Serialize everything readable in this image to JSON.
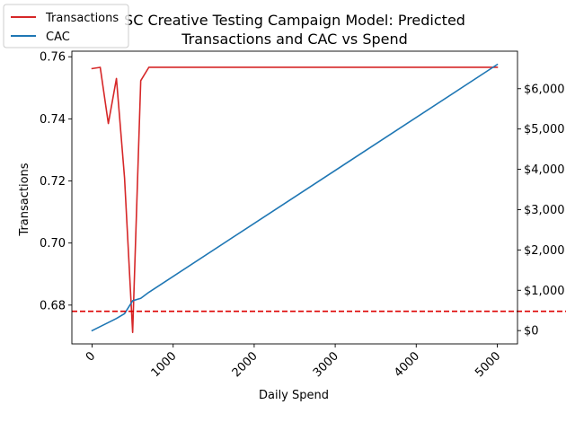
{
  "chart_data": {
    "type": "line",
    "title_line1": "SC Creative Testing Campaign Model: Predicted",
    "title_line2": "Transactions and CAC vs Spend",
    "xlabel": "Daily Spend",
    "ylabel_left": "Transactions",
    "xlim": [
      -250,
      5250
    ],
    "xticks": [
      0,
      1000,
      2000,
      3000,
      4000,
      5000
    ],
    "ylim_left": [
      0.6675,
      0.7618
    ],
    "yticks_left": [
      0.68,
      0.7,
      0.72,
      0.74,
      0.76
    ],
    "ytick_left_labels": [
      "0.68",
      "0.70",
      "0.72",
      "0.74",
      "0.76"
    ],
    "ylim_right": [
      -330,
      6930
    ],
    "yticks_right": [
      0,
      1000,
      2000,
      3000,
      4000,
      5000,
      6000
    ],
    "ytick_right_labels": [
      "$0",
      "$1,000",
      "$2,000",
      "$3,000",
      "$4,000",
      "$5,000",
      "$6,000"
    ],
    "reference_line": {
      "axis": "left",
      "y": 0.678,
      "color": "#dd0000",
      "style": "dashed"
    },
    "legend_position": "top-left",
    "series": [
      {
        "name": "Transactions",
        "axis": "left",
        "color": "#d62728",
        "x": [
          0,
          100,
          200,
          300,
          400,
          500,
          600,
          700,
          5000
        ],
        "y": [
          0.7562,
          0.7566,
          0.7385,
          0.753,
          0.721,
          0.6712,
          0.7523,
          0.7566,
          0.7566
        ]
      },
      {
        "name": "CAC",
        "axis": "right",
        "color": "#1f77b4",
        "x": [
          0,
          100,
          200,
          300,
          400,
          500,
          600,
          700,
          5000
        ],
        "y": [
          0,
          100,
          200,
          300,
          420,
          740,
          800,
          950,
          6600
        ]
      }
    ]
  }
}
